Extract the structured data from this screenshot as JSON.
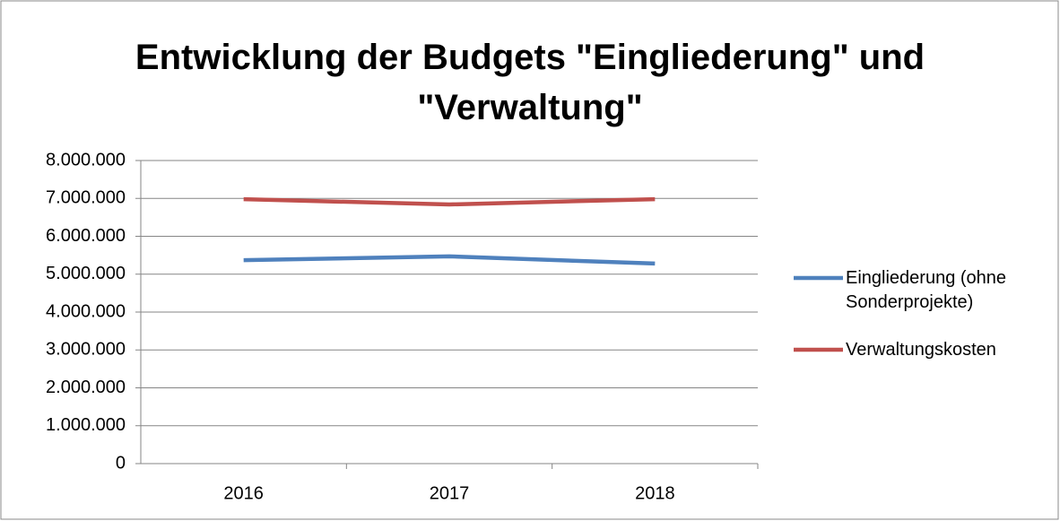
{
  "chart_data": {
    "type": "line",
    "title": "Entwicklung der Budgets \"Eingliederung\" und \"Verwaltung\"",
    "categories": [
      "2016",
      "2017",
      "2018"
    ],
    "series": [
      {
        "name": "Eingliederung (ohne Sonderprojekte)",
        "color": "#4f81bd",
        "values": [
          5370000,
          5470000,
          5280000
        ]
      },
      {
        "name": "Verwaltungskosten",
        "color": "#c0504d",
        "values": [
          6980000,
          6840000,
          6980000
        ]
      }
    ],
    "ylim": [
      0,
      8000000
    ],
    "yticks": [
      0,
      {
        "value": 1000000,
        "label": "1.000.000"
      },
      {
        "value": 2000000,
        "label": "2.000.000"
      },
      {
        "value": 3000000,
        "label": "3.000.000"
      },
      {
        "value": 4000000,
        "label": "4.000.000"
      },
      {
        "value": 5000000,
        "label": "5.000.000"
      },
      {
        "value": 6000000,
        "label": "6.000.000"
      },
      {
        "value": 7000000,
        "label": "7.000.000"
      },
      {
        "value": 8000000,
        "label": "8.000.000"
      }
    ],
    "grid": true,
    "legend": "right"
  }
}
